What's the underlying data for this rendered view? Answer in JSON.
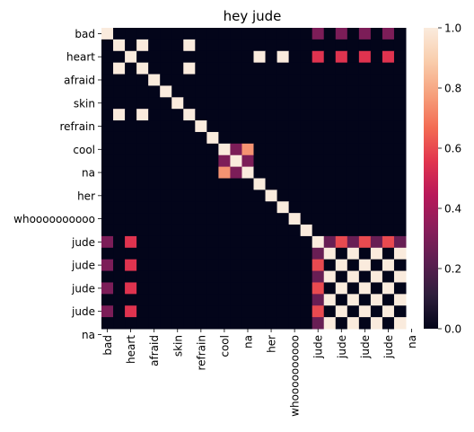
{
  "chart_data": {
    "type": "heatmap",
    "title": "hey jude",
    "xlabel": "",
    "ylabel": "",
    "rows": 26,
    "cols": 26,
    "ytick_labels": [
      "bad",
      "heart",
      "afraid",
      "skin",
      "refrain",
      "cool",
      "na",
      "her",
      "whoooooooooo",
      "jude",
      "jude",
      "jude",
      "jude",
      "na"
    ],
    "xtick_labels": [
      "bad",
      "heart",
      "afraid",
      "skin",
      "refrain",
      "cool",
      "na",
      "her",
      "whoooooooooo",
      "jude",
      "jude",
      "jude",
      "jude",
      "na"
    ],
    "colorbar": {
      "min": 0.0,
      "max": 1.0,
      "ticks": [
        "0.0",
        "0.2",
        "0.4",
        "0.6",
        "0.8",
        "1.0"
      ]
    },
    "colormap": [
      "#03051a",
      "#2e1e3c",
      "#5c1e51",
      "#8a1d5b",
      "#b8185a",
      "#e1344e",
      "#f36b53",
      "#f6a07c",
      "#f9cdac",
      "#faebdd"
    ],
    "matrix": [
      [
        1,
        0,
        0,
        0,
        0,
        0,
        0,
        0,
        0,
        0,
        0,
        0,
        0,
        0,
        0,
        0,
        0,
        0,
        0.3,
        0,
        0.3,
        0,
        0.3,
        0,
        0.3,
        0
      ],
      [
        0,
        1,
        0,
        1,
        0,
        0,
        0,
        1,
        0,
        0,
        0,
        0,
        0,
        0,
        0,
        0,
        0,
        0,
        0,
        0,
        0,
        0,
        0,
        0,
        0,
        0
      ],
      [
        0,
        0,
        1,
        0,
        0,
        0,
        0,
        0,
        0,
        0,
        0,
        0,
        0,
        1,
        0,
        1,
        0,
        0,
        0.55,
        0,
        0.55,
        0,
        0.55,
        0,
        0.55,
        0
      ],
      [
        0,
        1,
        0,
        1,
        0,
        0,
        0,
        1,
        0,
        0,
        0,
        0,
        0,
        0,
        0,
        0,
        0,
        0,
        0,
        0,
        0,
        0,
        0,
        0,
        0,
        0
      ],
      [
        0,
        0,
        0,
        0,
        1,
        0,
        0,
        0,
        0,
        0,
        0,
        0,
        0,
        0,
        0,
        0,
        0,
        0,
        0,
        0,
        0,
        0,
        0,
        0,
        0,
        0
      ],
      [
        0,
        0,
        0,
        0,
        0,
        1,
        0,
        0,
        0,
        0,
        0,
        0,
        0,
        0,
        0,
        0,
        0,
        0,
        0,
        0,
        0,
        0,
        0,
        0,
        0,
        0
      ],
      [
        0,
        0,
        0,
        0,
        0,
        0,
        1,
        0,
        0,
        0,
        0,
        0,
        0,
        0,
        0,
        0,
        0,
        0,
        0,
        0,
        0,
        0,
        0,
        0,
        0,
        0
      ],
      [
        0,
        1,
        0,
        1,
        0,
        0,
        0,
        1,
        0,
        0,
        0,
        0,
        0,
        0,
        0,
        0,
        0,
        0,
        0,
        0,
        0,
        0,
        0,
        0,
        0,
        0
      ],
      [
        0,
        0,
        0,
        0,
        0,
        0,
        0,
        0,
        1,
        0,
        0,
        0,
        0,
        0,
        0,
        0,
        0,
        0,
        0,
        0,
        0,
        0,
        0,
        0,
        0,
        0
      ],
      [
        0,
        0,
        0,
        0,
        0,
        0,
        0,
        0,
        0,
        1,
        0,
        0,
        0,
        0,
        0,
        0,
        0,
        0,
        0,
        0,
        0,
        0,
        0,
        0,
        0,
        0
      ],
      [
        0,
        0,
        0,
        0,
        0,
        0,
        0,
        0,
        0,
        0,
        1,
        0.3,
        0.75,
        0,
        0,
        0,
        0,
        0,
        0,
        0,
        0,
        0,
        0,
        0,
        0,
        0
      ],
      [
        0,
        0,
        0,
        0,
        0,
        0,
        0,
        0,
        0,
        0,
        0.3,
        1,
        0.3,
        0,
        0,
        0,
        0,
        0,
        0,
        0,
        0,
        0,
        0,
        0,
        0,
        0
      ],
      [
        0,
        0,
        0,
        0,
        0,
        0,
        0,
        0,
        0,
        0,
        0.75,
        0.3,
        1,
        0,
        0,
        0,
        0,
        0,
        0,
        0,
        0,
        0,
        0,
        0,
        0,
        0
      ],
      [
        0,
        0,
        0,
        0,
        0,
        0,
        0,
        0,
        0,
        0,
        0,
        0,
        0,
        1,
        0,
        0,
        0,
        0,
        0,
        0,
        0,
        0,
        0,
        0,
        0,
        0
      ],
      [
        0,
        0,
        0,
        0,
        0,
        0,
        0,
        0,
        0,
        0,
        0,
        0,
        0,
        0,
        1,
        0,
        0,
        0,
        0,
        0,
        0,
        0,
        0,
        0,
        0,
        0
      ],
      [
        0,
        0,
        0,
        0,
        0,
        0,
        0,
        0,
        0,
        0,
        0,
        0,
        0,
        0,
        0,
        1,
        0,
        0,
        0,
        0,
        0,
        0,
        0,
        0,
        0,
        0
      ],
      [
        0,
        0,
        0,
        0,
        0,
        0,
        0,
        0,
        0,
        0,
        0,
        0,
        0,
        0,
        0,
        0,
        1,
        0,
        0,
        0,
        0,
        0,
        0,
        0,
        0,
        0
      ],
      [
        0,
        0,
        0,
        0,
        0,
        0,
        0,
        0,
        0,
        0,
        0,
        0,
        0,
        0,
        0,
        0,
        0,
        1,
        0,
        0,
        0,
        0,
        0,
        0,
        0,
        0
      ],
      [
        0.3,
        0,
        0.55,
        0,
        0,
        0,
        0,
        0,
        0,
        0,
        0,
        0,
        0,
        0,
        0,
        0,
        0,
        0,
        1,
        0.25,
        0.6,
        0.25,
        0.6,
        0.25,
        0.6,
        0.25
      ],
      [
        0,
        0,
        0,
        0,
        0,
        0,
        0,
        0,
        0,
        0,
        0,
        0,
        0,
        0,
        0,
        0,
        0,
        0,
        0.25,
        1,
        0,
        1,
        0,
        1,
        0,
        1
      ],
      [
        0.3,
        0,
        0.55,
        0,
        0,
        0,
        0,
        0,
        0,
        0,
        0,
        0,
        0,
        0,
        0,
        0,
        0,
        0,
        0.6,
        0,
        1,
        0,
        1,
        0,
        1,
        0
      ],
      [
        0,
        0,
        0,
        0,
        0,
        0,
        0,
        0,
        0,
        0,
        0,
        0,
        0,
        0,
        0,
        0,
        0,
        0,
        0.25,
        1,
        0,
        1,
        0,
        1,
        0,
        1
      ],
      [
        0.3,
        0,
        0.55,
        0,
        0,
        0,
        0,
        0,
        0,
        0,
        0,
        0,
        0,
        0,
        0,
        0,
        0,
        0,
        0.6,
        0,
        1,
        0,
        1,
        0,
        1,
        0
      ],
      [
        0,
        0,
        0,
        0,
        0,
        0,
        0,
        0,
        0,
        0,
        0,
        0,
        0,
        0,
        0,
        0,
        0,
        0,
        0.25,
        1,
        0,
        1,
        0,
        1,
        0,
        1
      ],
      [
        0.3,
        0,
        0.55,
        0,
        0,
        0,
        0,
        0,
        0,
        0,
        0,
        0,
        0,
        0,
        0,
        0,
        0,
        0,
        0.6,
        0,
        1,
        0,
        1,
        0,
        1,
        0
      ],
      [
        0,
        0,
        0,
        0,
        0,
        0,
        0,
        0,
        0,
        0,
        0,
        0,
        0,
        0,
        0,
        0,
        0,
        0,
        0.25,
        1,
        0,
        1,
        0,
        1,
        0,
        1
      ]
    ]
  }
}
